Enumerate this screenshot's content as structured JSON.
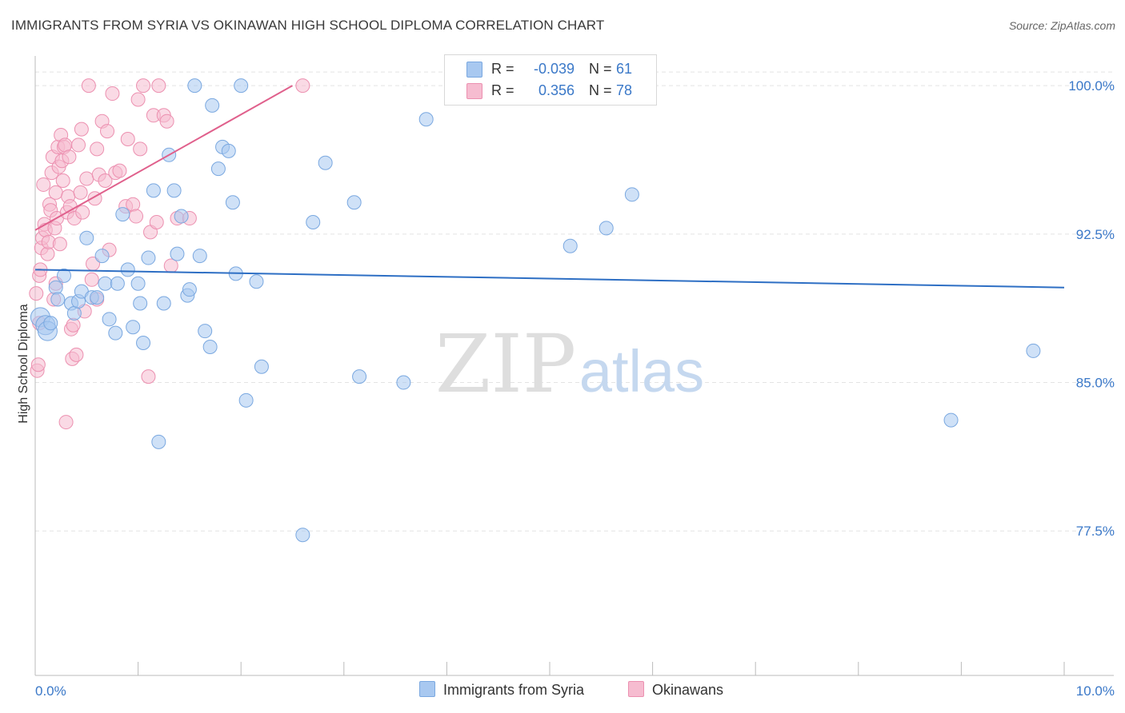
{
  "title": "IMMIGRANTS FROM SYRIA VS OKINAWAN HIGH SCHOOL DIPLOMA CORRELATION CHART",
  "source": "Source: ZipAtlas.com",
  "watermark": {
    "zip": "ZIP",
    "atlas": "atlas"
  },
  "legend": {
    "rows": [
      {
        "r_label": "R =",
        "r_value": "-0.039",
        "n_label": "N =",
        "n_value": "61"
      },
      {
        "r_label": "R =",
        "r_value": "0.356",
        "n_label": "N =",
        "n_value": "78"
      }
    ],
    "bottom": [
      "Immigrants from Syria",
      "Okinawans"
    ]
  },
  "colors": {
    "blue_fill": "#a8c8f0",
    "blue_stroke": "#7aa8e0",
    "blue_line": "#2e6fc4",
    "pink_fill": "#f6bcd0",
    "pink_stroke": "#ec90b0",
    "pink_line": "#e0608c",
    "axis_label": "#3a78c8",
    "grid": "#e3e3e3"
  },
  "chart_data": {
    "type": "scatter",
    "title": "IMMIGRANTS FROM SYRIA VS OKINAWAN HIGH SCHOOL DIPLOMA CORRELATION CHART",
    "xlabel": "",
    "ylabel": "High School Diploma",
    "xlim": [
      0,
      10
    ],
    "ylim": [
      70.2,
      101.5
    ],
    "x_tick_labels": [
      "0.0%",
      "10.0%"
    ],
    "y_ticks": [
      77.5,
      85.0,
      92.5,
      100.0
    ],
    "y_tick_labels": [
      "77.5%",
      "85.0%",
      "92.5%",
      "100.0%"
    ],
    "grid": true,
    "series": [
      {
        "name": "Immigrants from Syria",
        "color": "blue",
        "trend": {
          "x": [
            0.0,
            10.0
          ],
          "y": [
            90.7,
            89.8
          ]
        },
        "points": [
          [
            0.05,
            88.3
          ],
          [
            0.1,
            87.9
          ],
          [
            0.12,
            87.6
          ],
          [
            0.15,
            88.0
          ],
          [
            0.2,
            89.8
          ],
          [
            0.22,
            89.2
          ],
          [
            0.28,
            90.4
          ],
          [
            0.35,
            89.0
          ],
          [
            0.38,
            88.5
          ],
          [
            0.42,
            89.1
          ],
          [
            0.45,
            89.6
          ],
          [
            0.5,
            92.3
          ],
          [
            0.55,
            89.3
          ],
          [
            0.6,
            89.3
          ],
          [
            0.65,
            91.4
          ],
          [
            0.68,
            90.0
          ],
          [
            0.72,
            88.2
          ],
          [
            0.78,
            87.5
          ],
          [
            0.8,
            90.0
          ],
          [
            0.85,
            93.5
          ],
          [
            0.9,
            90.7
          ],
          [
            0.95,
            87.8
          ],
          [
            1.0,
            90.0
          ],
          [
            1.02,
            89.0
          ],
          [
            1.05,
            87.0
          ],
          [
            1.1,
            91.3
          ],
          [
            1.15,
            94.7
          ],
          [
            1.2,
            82.0
          ],
          [
            1.25,
            89.0
          ],
          [
            1.3,
            96.5
          ],
          [
            1.35,
            94.7
          ],
          [
            1.38,
            91.5
          ],
          [
            1.42,
            93.4
          ],
          [
            1.48,
            89.4
          ],
          [
            1.5,
            89.7
          ],
          [
            1.55,
            100.0
          ],
          [
            1.6,
            91.4
          ],
          [
            1.65,
            87.6
          ],
          [
            1.7,
            86.8
          ],
          [
            1.72,
            99.0
          ],
          [
            1.78,
            95.8
          ],
          [
            1.82,
            96.9
          ],
          [
            1.88,
            96.7
          ],
          [
            1.92,
            94.1
          ],
          [
            1.95,
            90.5
          ],
          [
            2.0,
            100.0
          ],
          [
            2.05,
            84.1
          ],
          [
            2.15,
            90.1
          ],
          [
            2.2,
            85.8
          ],
          [
            2.6,
            77.3
          ],
          [
            2.7,
            93.1
          ],
          [
            2.82,
            96.1
          ],
          [
            3.1,
            94.1
          ],
          [
            3.15,
            85.3
          ],
          [
            3.58,
            85.0
          ],
          [
            3.8,
            98.3
          ],
          [
            5.2,
            91.9
          ],
          [
            5.55,
            92.8
          ],
          [
            5.8,
            94.5
          ],
          [
            8.9,
            83.1
          ],
          [
            9.7,
            86.6
          ]
        ]
      },
      {
        "name": "Okinawans",
        "color": "pink",
        "trend": {
          "x": [
            0.0,
            2.5
          ],
          "y": [
            92.7,
            100.0
          ]
        },
        "points": [
          [
            0.02,
            85.6
          ],
          [
            0.03,
            85.9
          ],
          [
            0.04,
            90.4
          ],
          [
            0.05,
            90.7
          ],
          [
            0.06,
            91.8
          ],
          [
            0.07,
            92.3
          ],
          [
            0.08,
            95.0
          ],
          [
            0.09,
            93.0
          ],
          [
            0.1,
            92.7
          ],
          [
            0.12,
            91.5
          ],
          [
            0.13,
            92.1
          ],
          [
            0.14,
            94.0
          ],
          [
            0.15,
            93.7
          ],
          [
            0.16,
            95.6
          ],
          [
            0.17,
            96.4
          ],
          [
            0.18,
            89.2
          ],
          [
            0.19,
            92.8
          ],
          [
            0.2,
            94.6
          ],
          [
            0.21,
            93.3
          ],
          [
            0.22,
            96.9
          ],
          [
            0.23,
            95.9
          ],
          [
            0.24,
            92.0
          ],
          [
            0.25,
            97.5
          ],
          [
            0.26,
            96.2
          ],
          [
            0.27,
            95.2
          ],
          [
            0.28,
            96.9
          ],
          [
            0.29,
            97.0
          ],
          [
            0.3,
            83.0
          ],
          [
            0.31,
            93.6
          ],
          [
            0.32,
            94.4
          ],
          [
            0.33,
            96.4
          ],
          [
            0.34,
            93.9
          ],
          [
            0.35,
            87.7
          ],
          [
            0.36,
            86.2
          ],
          [
            0.37,
            87.9
          ],
          [
            0.38,
            93.3
          ],
          [
            0.4,
            86.4
          ],
          [
            0.42,
            97.0
          ],
          [
            0.44,
            94.6
          ],
          [
            0.45,
            97.8
          ],
          [
            0.46,
            93.6
          ],
          [
            0.48,
            88.6
          ],
          [
            0.5,
            95.3
          ],
          [
            0.52,
            100.0
          ],
          [
            0.55,
            90.2
          ],
          [
            0.56,
            91.0
          ],
          [
            0.58,
            94.3
          ],
          [
            0.6,
            96.8
          ],
          [
            0.62,
            95.5
          ],
          [
            0.65,
            98.2
          ],
          [
            0.68,
            95.2
          ],
          [
            0.7,
            97.7
          ],
          [
            0.72,
            91.7
          ],
          [
            0.75,
            99.6
          ],
          [
            0.78,
            95.6
          ],
          [
            0.82,
            95.7
          ],
          [
            0.88,
            93.9
          ],
          [
            0.9,
            97.3
          ],
          [
            0.95,
            94.0
          ],
          [
            0.98,
            93.4
          ],
          [
            1.0,
            99.3
          ],
          [
            1.02,
            96.8
          ],
          [
            1.05,
            100.0
          ],
          [
            1.1,
            85.3
          ],
          [
            1.12,
            92.6
          ],
          [
            1.15,
            98.5
          ],
          [
            1.18,
            93.1
          ],
          [
            1.2,
            100.0
          ],
          [
            1.25,
            98.5
          ],
          [
            1.28,
            98.2
          ],
          [
            1.32,
            90.9
          ],
          [
            1.38,
            93.3
          ],
          [
            2.6,
            100.0
          ],
          [
            0.01,
            89.5
          ],
          [
            0.04,
            88.0
          ],
          [
            0.6,
            89.2
          ],
          [
            1.5,
            93.3
          ],
          [
            0.2,
            90.0
          ]
        ]
      }
    ]
  }
}
